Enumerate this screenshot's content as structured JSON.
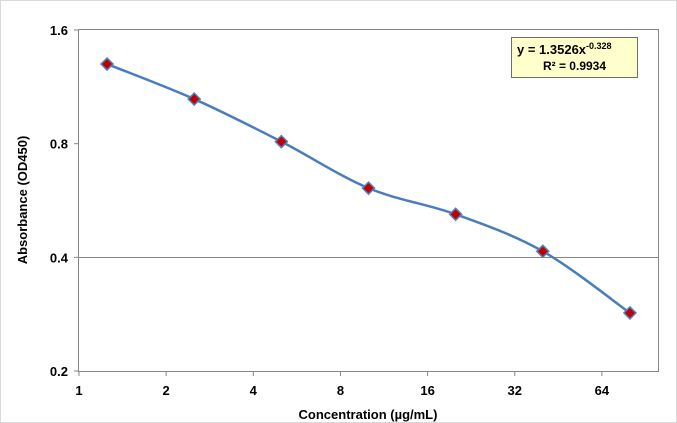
{
  "chart_data": {
    "type": "scatter",
    "title": "",
    "xlabel": "Concentration (µg/mL)",
    "ylabel": "Absorbance (OD450)",
    "x_scale": "log2",
    "y_scale": "log2",
    "xlim": [
      1,
      100
    ],
    "ylim": [
      0.2,
      1.6
    ],
    "x_ticks": [
      {
        "value": 1,
        "label": "1"
      },
      {
        "value": 2,
        "label": "2"
      },
      {
        "value": 4,
        "label": "4"
      },
      {
        "value": 8,
        "label": "8"
      },
      {
        "value": 16,
        "label": "16"
      },
      {
        "value": 32,
        "label": "32"
      },
      {
        "value": 64,
        "label": "64"
      }
    ],
    "y_ticks": [
      {
        "value": 0.2,
        "label": "0.2"
      },
      {
        "value": 0.4,
        "label": "0.4"
      },
      {
        "value": 0.8,
        "label": "0.8"
      },
      {
        "value": 1.6,
        "label": "1.6"
      }
    ],
    "gridlines": {
      "horizontal": [
        0.4
      ],
      "vertical": []
    },
    "series": [
      {
        "x": [
          1.25,
          2.5,
          5,
          10,
          20,
          40,
          80
        ],
        "y": [
          1.3,
          1.05,
          0.81,
          0.61,
          0.52,
          0.415,
          0.285
        ],
        "marker": "diamond",
        "marker_color": "#c00000",
        "marker_edge_color": "#4f81bd",
        "line": "smooth",
        "line_color": "#4a7ebb"
      }
    ],
    "annotation": {
      "equation_prefix": "y = 1.3526x",
      "equation_exponent": "-0.328",
      "r_squared": "R² = 0.9934"
    }
  }
}
